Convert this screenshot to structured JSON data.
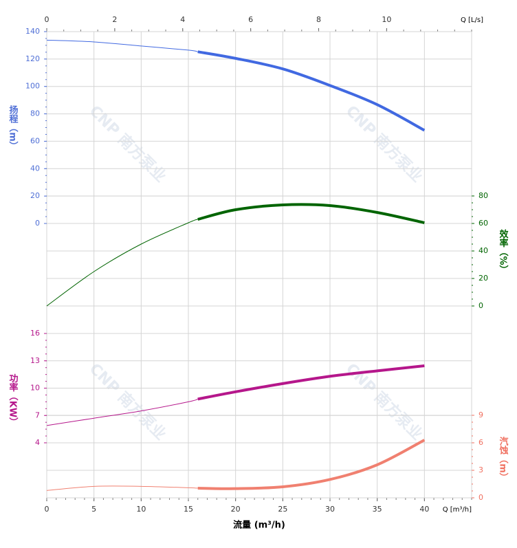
{
  "chart_data": {
    "type": "line",
    "xlabel": "流量 (m³/h)",
    "x_unit_label": "Q [m³/h]",
    "x2_unit_label": "Q [L/s]",
    "watermark": "CNP 南方泵业",
    "x": [
      0,
      5,
      10,
      15,
      16,
      20,
      25,
      30,
      35,
      40
    ],
    "operating_range": [
      16,
      40
    ],
    "xlim": [
      0,
      45
    ],
    "xticks": [
      0,
      5,
      10,
      15,
      20,
      25,
      30,
      35,
      40
    ],
    "x2lim": [
      0,
      12.5
    ],
    "x2ticks": [
      0,
      2,
      4,
      6,
      8,
      10
    ],
    "ylabel": "扬程（m）",
    "ylim": [
      0,
      140
    ],
    "yticks": [
      0,
      20,
      40,
      60,
      80,
      100,
      120,
      140
    ],
    "y2label": "效率（%）",
    "y2lim": [
      0,
      80
    ],
    "y2ticks": [
      0,
      20,
      40,
      60,
      80
    ],
    "y3label": "功率（KW）",
    "y3lim": [
      4,
      16
    ],
    "y3ticks": [
      4,
      7,
      10,
      13,
      16
    ],
    "y4label": "汽蚀（m）",
    "y4lim": [
      0,
      9
    ],
    "y4ticks": [
      0,
      3,
      6,
      9
    ],
    "grid": true,
    "series": [
      {
        "axis": "y",
        "color": "#4169e1",
        "values": [
          133.8,
          132.5,
          129.5,
          126.5,
          125.3,
          120.5,
          112.8,
          100.7,
          86.7,
          68
        ]
      },
      {
        "axis": "y2",
        "color": "#006400",
        "values": [
          0,
          25,
          45,
          60.5,
          63,
          70,
          73.5,
          73,
          68,
          60.5
        ]
      },
      {
        "axis": "y3",
        "color": "#b5178b",
        "values": [
          5.9,
          6.7,
          7.5,
          8.5,
          8.8,
          9.6,
          10.5,
          11.3,
          11.9,
          12.45
        ]
      },
      {
        "axis": "y4",
        "color": "#f08070",
        "values": [
          0.8,
          1.25,
          1.25,
          1.1,
          1.05,
          1.0,
          1.2,
          2.0,
          3.6,
          6.3
        ]
      }
    ]
  }
}
